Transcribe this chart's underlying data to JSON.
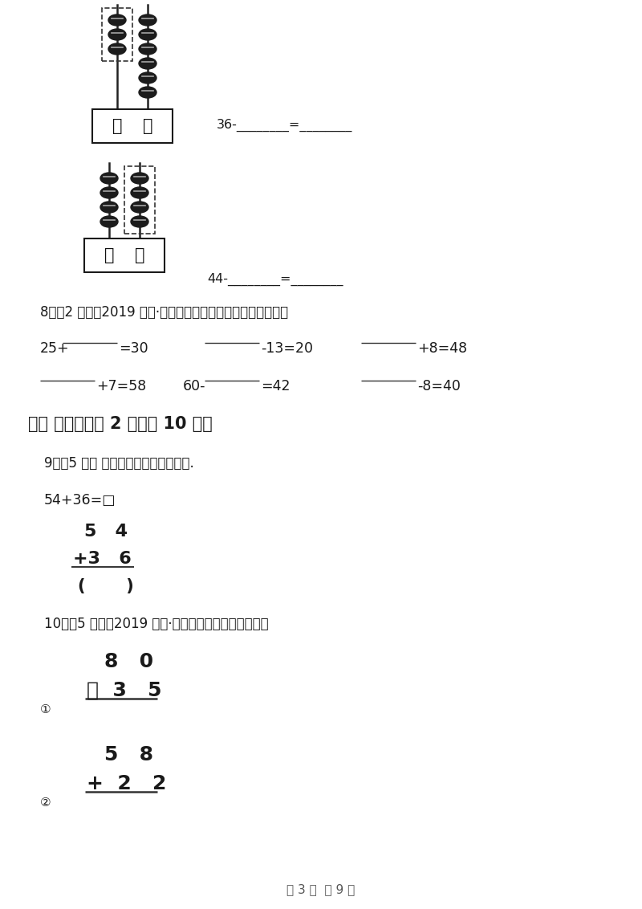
{
  "bg_color": "#ffffff",
  "page_width": 8.0,
  "page_height": 11.32,
  "dpi": 100,
  "section3_title": "三、 计算题（共 2 题；共 10 分）",
  "q8_label": "8．（2 分）（2019 一下·嘉陵期末）在横线上填上适当的数。",
  "q9_label": "9．（5 分） 计算．（从上到下填写）.",
  "q9_eq": "54+36=□",
  "q10_label": "10．（5 分）（2019 二上·营山期末）计算下面各题。",
  "footer": "第 3 页  共 9 页",
  "abacus1_label": "36-________=________",
  "abacus2_label": "44-________=________"
}
